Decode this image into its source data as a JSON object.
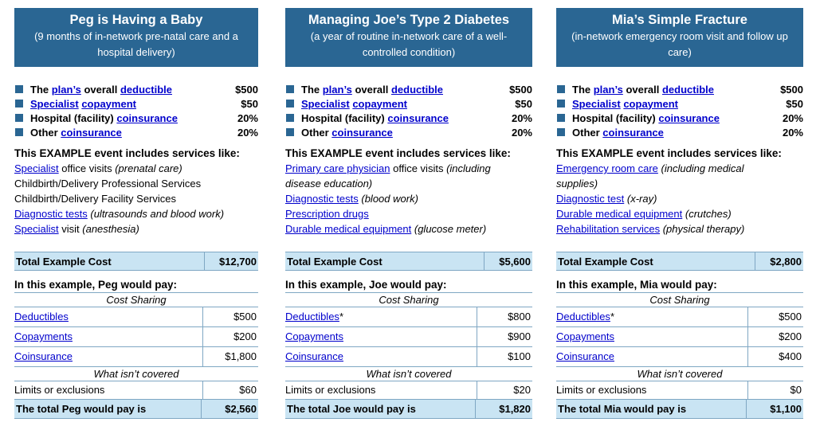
{
  "colors": {
    "header_bg": "#2a6693",
    "bullet": "#2a6693",
    "highlight_bg": "#c9e4f3",
    "link": "#0000cc"
  },
  "examples": [
    {
      "title": "Peg is Having a Baby",
      "subtitle": "(9 months of in-network pre-natal care and a hospital delivery)",
      "plan": {
        "deductible": {
          "pre": "The ",
          "link1": "plan’s",
          "mid": " overall ",
          "link2": "deductible",
          "value": "$500"
        },
        "specialist": {
          "link1": "Specialist",
          "link2": "copayment",
          "value": "$50"
        },
        "hospital": {
          "pre": "Hospital (facility) ",
          "link": "coinsurance",
          "value": "20%"
        },
        "other": {
          "pre": "Other ",
          "link": "coinsurance",
          "value": "20%"
        }
      },
      "events_heading": "This EXAMPLE event includes services like:",
      "events": {
        "l0_link": "Specialist",
        "l0_text": " office visits ",
        "l0_italic": "(prenatal care)",
        "l1_text": "Childbirth/Delivery Professional Services",
        "l2_text": "Childbirth/Delivery Facility Services",
        "l3_link": "Diagnostic tests",
        "l3_italic": " (ultrasounds and blood work)",
        "l4_link": "Specialist",
        "l4_text": " visit ",
        "l4_italic": "(anesthesia)"
      },
      "total_cost_label": "Total Example Cost",
      "total_cost_value": "$12,700",
      "would_pay": "In this example, Peg would pay:",
      "cost_sharing_label": "Cost Sharing",
      "deductibles_label": "Deductibles",
      "deductibles_suffix": "",
      "deductibles_value": "$500",
      "copayments_label": "Copayments",
      "copayments_value": "$200",
      "coinsurance_label": "Coinsurance",
      "coinsurance_value": "$1,800",
      "not_covered_label": "What isn’t covered",
      "limits_label": "Limits or exclusions",
      "limits_value": "$60",
      "total_pay_label": "The total Peg would pay is",
      "total_pay_value": "$2,560"
    },
    {
      "title": "Managing Joe’s Type 2 Diabetes",
      "subtitle": "(a year of routine in-network care of a well-controlled condition)",
      "plan": {
        "deductible": {
          "pre": "The ",
          "link1": "plan’s",
          "mid": " overall ",
          "link2": "deductible",
          "value": "$500"
        },
        "specialist": {
          "link1": "Specialist",
          "link2": "copayment",
          "value": "$50"
        },
        "hospital": {
          "pre": "Hospital (facility) ",
          "link": "coinsurance",
          "value": "20%"
        },
        "other": {
          "pre": "Other ",
          "link": "coinsurance",
          "value": "20%"
        }
      },
      "events_heading": "This EXAMPLE event includes services like:",
      "events": {
        "l0_link": "Primary care physician",
        "l0_text": " office visits ",
        "l0_italic": "(including",
        "l1_italic": "disease education)",
        "l2_link": "Diagnostic tests",
        "l2_italic": " (blood work)",
        "l3_link": "Prescription drugs",
        "l4_link": "Durable medical equipment",
        "l4_italic": " (glucose meter)"
      },
      "total_cost_label": "Total Example Cost",
      "total_cost_value": "$5,600",
      "would_pay": "In this example, Joe would pay:",
      "cost_sharing_label": "Cost Sharing",
      "deductibles_label": "Deductibles",
      "deductibles_suffix": "*",
      "deductibles_value": "$800",
      "copayments_label": "Copayments",
      "copayments_value": "$900",
      "coinsurance_label": "Coinsurance",
      "coinsurance_value": "$100",
      "not_covered_label": "What isn’t covered",
      "limits_label": "Limits or exclusions",
      "limits_value": "$20",
      "total_pay_label": "The total Joe would pay is",
      "total_pay_value": "$1,820"
    },
    {
      "title": "Mia’s Simple Fracture",
      "subtitle": "(in-network emergency room visit and follow up care)",
      "plan": {
        "deductible": {
          "pre": "The ",
          "link1": "plan’s",
          "mid": " overall ",
          "link2": "deductible",
          "value": "$500"
        },
        "specialist": {
          "link1": "Specialist",
          "link2": "copayment",
          "value": "$50"
        },
        "hospital": {
          "pre": "Hospital (facility) ",
          "link": "coinsurance",
          "value": "20%"
        },
        "other": {
          "pre": "Other ",
          "link": "coinsurance",
          "value": "20%"
        }
      },
      "events_heading": "This EXAMPLE event includes services like:",
      "events": {
        "l0_link": "Emergency room care",
        "l0_italic": " (including medical",
        "l1_italic": "supplies)",
        "l2_link": "Diagnostic test",
        "l2_italic": " (x-ray)",
        "l3_link": "Durable medical equipment",
        "l3_italic": " (crutches)",
        "l4_link": "Rehabilitation services",
        "l4_italic": " (physical therapy)"
      },
      "total_cost_label": "Total Example Cost",
      "total_cost_value": "$2,800",
      "would_pay": "In this example, Mia would pay:",
      "cost_sharing_label": "Cost Sharing",
      "deductibles_label": "Deductibles",
      "deductibles_suffix": "*",
      "deductibles_value": "$500",
      "copayments_label": "Copayments",
      "copayments_value": "$200",
      "coinsurance_label": "Coinsurance",
      "coinsurance_value": "$400",
      "not_covered_label": "What isn’t covered",
      "limits_label": "Limits or exclusions",
      "limits_value": "$0",
      "total_pay_label": "The total Mia would pay is",
      "total_pay_value": "$1,100"
    }
  ]
}
